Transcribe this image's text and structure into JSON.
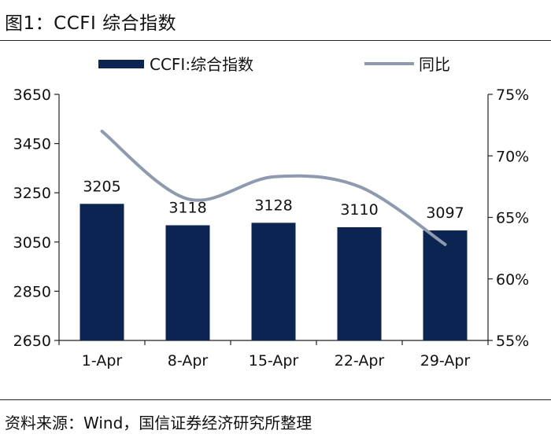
{
  "figure_title": "图1：CCFI 综合指数",
  "source_note": "资料来源：Wind，国信证券经济研究所整理",
  "colors": {
    "bar": "#0c2451",
    "line": "#8e9aad"
  },
  "chart_data": {
    "type": "bar",
    "categories": [
      "1-Apr",
      "8-Apr",
      "15-Apr",
      "22-Apr",
      "29-Apr"
    ],
    "series": [
      {
        "name": "CCFI:综合指数",
        "type": "bar",
        "axis": "left",
        "values": [
          3205,
          3118,
          3128,
          3110,
          3097
        ]
      },
      {
        "name": "同比",
        "type": "line",
        "axis": "right",
        "values": [
          72.0,
          66.5,
          68.3,
          67.5,
          62.8
        ]
      }
    ],
    "data_labels": [
      "3205",
      "3118",
      "3128",
      "3110",
      "3097"
    ],
    "y_left": {
      "min": 2650,
      "max": 3650,
      "ticks": [
        2650,
        2850,
        3050,
        3250,
        3450,
        3650
      ]
    },
    "y_right": {
      "min": 55,
      "max": 75,
      "ticks": [
        55,
        60,
        65,
        70,
        75
      ],
      "tick_labels": [
        "55%",
        "60%",
        "65%",
        "70%",
        "75%"
      ]
    },
    "legend": "top",
    "grid": false
  }
}
